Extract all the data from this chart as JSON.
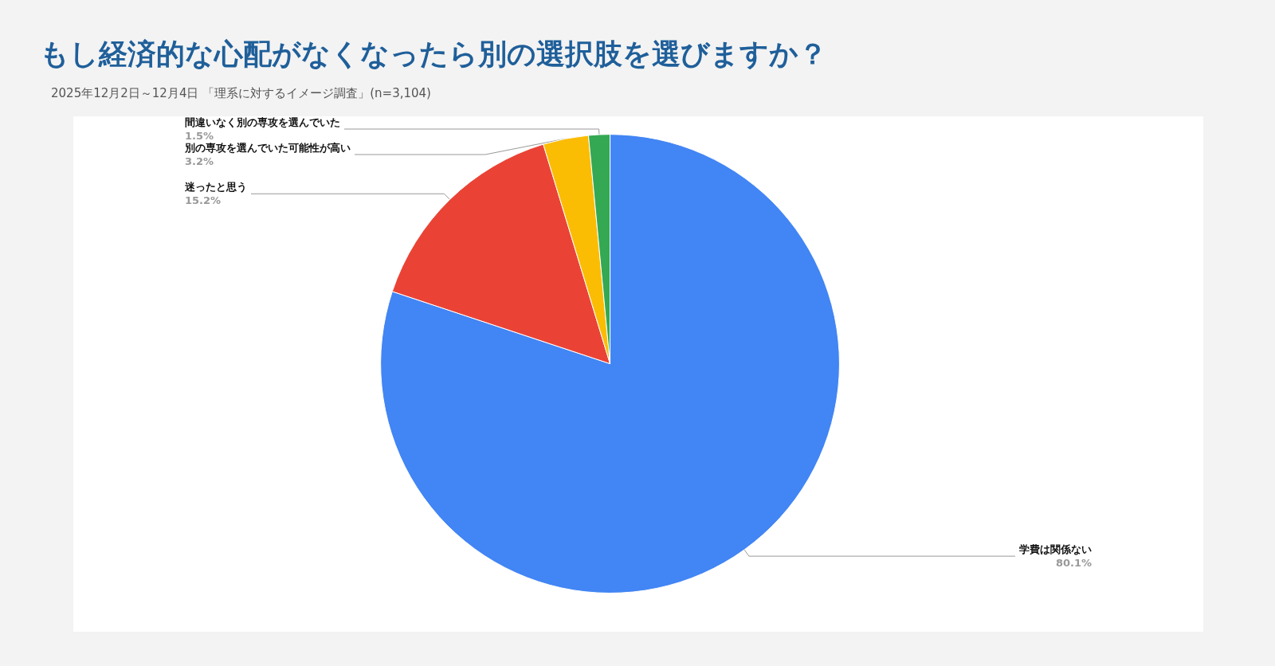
{
  "chart_data": {
    "type": "pie",
    "title": "もし経済的な心配がなくなったら別の選択肢を選びますか？",
    "subtitle": "2025年12月2日～12月4日 「理系に対するイメージ調査」(n=3,104)",
    "categories": [
      "学費は関係ない",
      "迷ったと思う",
      "別の専攻を選んでいた可能性が高い",
      "間違いなく別の専攻を選んでいた"
    ],
    "values": [
      80.1,
      15.2,
      3.2,
      1.5
    ],
    "colors": [
      "#4285f4",
      "#ea4335",
      "#fbbc04",
      "#34a853"
    ],
    "value_labels": [
      "80.1%",
      "15.2%",
      "3.2%",
      "1.5%"
    ]
  }
}
